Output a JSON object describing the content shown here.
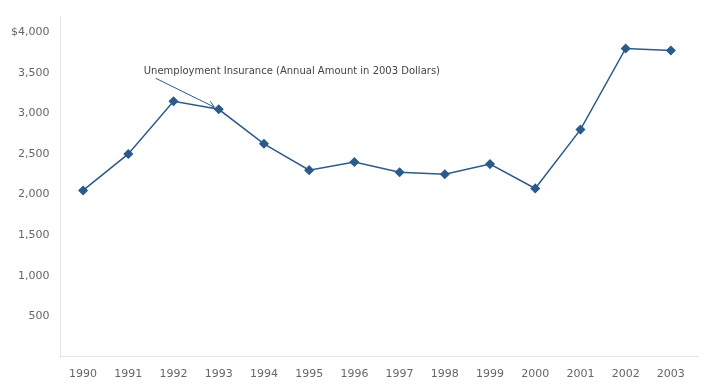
{
  "chart_data": {
    "type": "line",
    "x": [
      1990,
      1991,
      1992,
      1993,
      1994,
      1995,
      1996,
      1997,
      1998,
      1999,
      2000,
      2001,
      2002,
      2003
    ],
    "values": [
      2050,
      2500,
      3150,
      3050,
      2625,
      2300,
      2400,
      2275,
      2250,
      2375,
      2075,
      2800,
      3800,
      3775
    ],
    "color": "#2B5B8A",
    "marker": "diamond",
    "xlim": [
      1989.5,
      2003.6
    ],
    "xticks": [
      1990,
      1991,
      1992,
      1993,
      1994,
      1995,
      1996,
      1997,
      1998,
      1999,
      2000,
      2001,
      2002,
      2003
    ],
    "ylim": [
      0,
      4200
    ],
    "yticks": [
      500,
      {
        "value": 1000,
        "label": "1,000"
      },
      {
        "value": 1500,
        "label": "1,500"
      },
      {
        "value": 2000,
        "label": "2,000"
      },
      {
        "value": 2500,
        "label": "2,500"
      },
      {
        "value": 3000,
        "label": "3,000"
      },
      {
        "value": 3500,
        "label": "3,500"
      },
      {
        "value": 4000,
        "label": "$4,000"
      }
    ],
    "grid": false,
    "annotations": [
      {
        "text": "Unemployment Insurance (Annual Amount in 2003 Dollars)",
        "x": 1993,
        "y": 3050
      }
    ]
  }
}
